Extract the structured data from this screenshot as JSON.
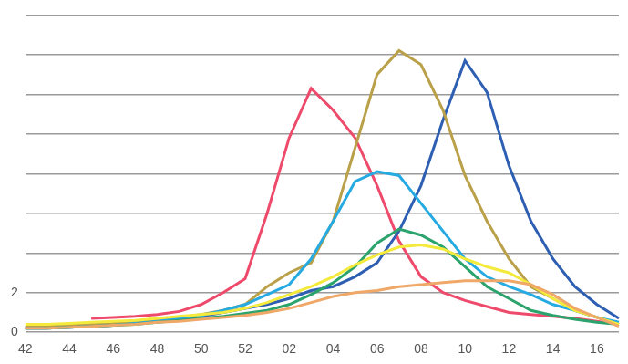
{
  "chart_data": {
    "type": "line",
    "categories": [
      "42",
      null,
      "44",
      null,
      "46",
      null,
      "48",
      null,
      "50",
      null,
      "52",
      null,
      "02",
      null,
      "04",
      null,
      "06",
      null,
      "08",
      null,
      "10",
      null,
      "12",
      null,
      "14",
      null,
      "16",
      null
    ],
    "series": [
      {
        "color": "#f0a868",
        "values": [
          0.2,
          0.2,
          0.25,
          0.3,
          0.35,
          0.4,
          0.5,
          0.55,
          0.65,
          0.75,
          0.85,
          1.0,
          1.2,
          1.5,
          1.8,
          2.0,
          2.1,
          2.3,
          2.4,
          2.5,
          2.6,
          2.6,
          2.6,
          2.4,
          1.9,
          1.2,
          0.75,
          0.3
        ]
      },
      {
        "color": "#f4ea3c",
        "values": [
          0.4,
          0.4,
          0.45,
          0.5,
          0.55,
          0.6,
          0.7,
          0.8,
          0.9,
          1.0,
          1.2,
          1.5,
          1.9,
          2.3,
          2.8,
          3.4,
          3.9,
          4.3,
          4.4,
          4.2,
          3.7,
          3.3,
          3.0,
          2.4,
          1.7,
          1.1,
          0.75,
          0.4
        ]
      },
      {
        "color": "#2ba36c",
        "values": [
          0.2,
          0.2,
          0.25,
          0.3,
          0.35,
          0.4,
          0.5,
          0.6,
          0.7,
          0.8,
          0.95,
          1.1,
          1.4,
          1.9,
          2.5,
          3.3,
          4.5,
          5.2,
          4.9,
          4.3,
          3.3,
          2.3,
          1.7,
          1.1,
          0.85,
          0.65,
          0.5,
          0.4
        ]
      },
      {
        "color": "#26aae2",
        "values": [
          0.2,
          0.2,
          0.25,
          0.3,
          0.35,
          0.45,
          0.55,
          0.7,
          0.85,
          1.1,
          1.4,
          1.9,
          2.4,
          3.7,
          5.6,
          7.6,
          8.1,
          7.9,
          6.5,
          5.1,
          3.7,
          2.8,
          2.3,
          1.9,
          1.4,
          1.1,
          0.75,
          0.5
        ]
      },
      {
        "color": "#b9a049",
        "values": [
          0.3,
          0.3,
          0.35,
          0.4,
          0.45,
          0.55,
          0.65,
          0.75,
          0.9,
          1.1,
          1.4,
          2.3,
          3.0,
          3.5,
          5.6,
          9.3,
          13.0,
          14.2,
          13.5,
          11.2,
          7.9,
          5.6,
          3.7,
          2.3,
          1.7,
          1.1,
          0.75,
          0.4
        ]
      },
      {
        "color": "#2e5fb2",
        "values": [
          0.2,
          0.2,
          0.25,
          0.3,
          0.35,
          0.45,
          0.55,
          0.65,
          0.8,
          1.0,
          1.2,
          1.4,
          1.7,
          2.1,
          2.3,
          2.8,
          3.5,
          5.1,
          7.4,
          10.7,
          13.7,
          12.1,
          8.4,
          5.6,
          3.7,
          2.3,
          1.4,
          0.7
        ]
      },
      {
        "color": "#ee4a6c",
        "values": [
          null,
          null,
          null,
          0.7,
          0.75,
          0.8,
          0.9,
          1.05,
          1.4,
          2.0,
          2.7,
          6.0,
          9.8,
          12.3,
          11.2,
          9.8,
          7.4,
          4.6,
          2.8,
          2.0,
          1.6,
          1.3,
          1.0,
          0.9,
          0.8,
          0.7,
          0.55,
          0.4
        ]
      }
    ],
    "ylim": [
      0,
      16
    ],
    "yticks": [
      0,
      2,
      {
        "value": 4,
        "label": null
      },
      {
        "value": 6,
        "label": null
      },
      {
        "value": 8,
        "label": null
      },
      {
        "value": 10,
        "label": null
      },
      {
        "value": 12,
        "label": null
      },
      {
        "value": 14,
        "label": null
      },
      {
        "value": 16,
        "label": null
      }
    ],
    "grid": true
  }
}
